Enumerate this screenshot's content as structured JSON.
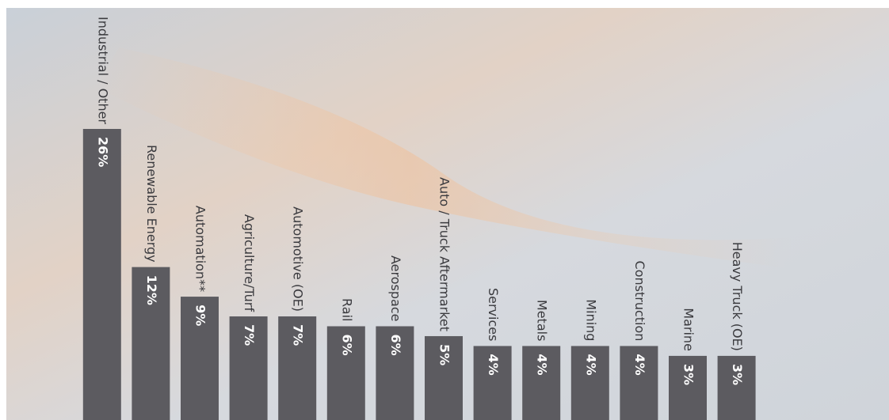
{
  "chart_data": {
    "type": "bar",
    "categories": [
      "Industrial / Other",
      "Renewable Energy",
      "Automation**",
      "Agriculture/Turf",
      "Automotive (OE)",
      "Rail",
      "Aerospace",
      "Auto / Truck Aftermarket",
      "Services",
      "Metals",
      "Mining",
      "Construction",
      "Marine",
      "Heavy Truck (OE)"
    ],
    "values": [
      26,
      12,
      9,
      7,
      7,
      6,
      6,
      5,
      4,
      4,
      4,
      4,
      3,
      3
    ],
    "value_labels": [
      "26%",
      "12%",
      "9%",
      "7%",
      "7%",
      "6%",
      "6%",
      "5%",
      "4%",
      "4%",
      "4%",
      "4%",
      "3%",
      "3%"
    ],
    "color": "#5c5b60",
    "ylim": [
      -3.5,
      26
    ]
  }
}
